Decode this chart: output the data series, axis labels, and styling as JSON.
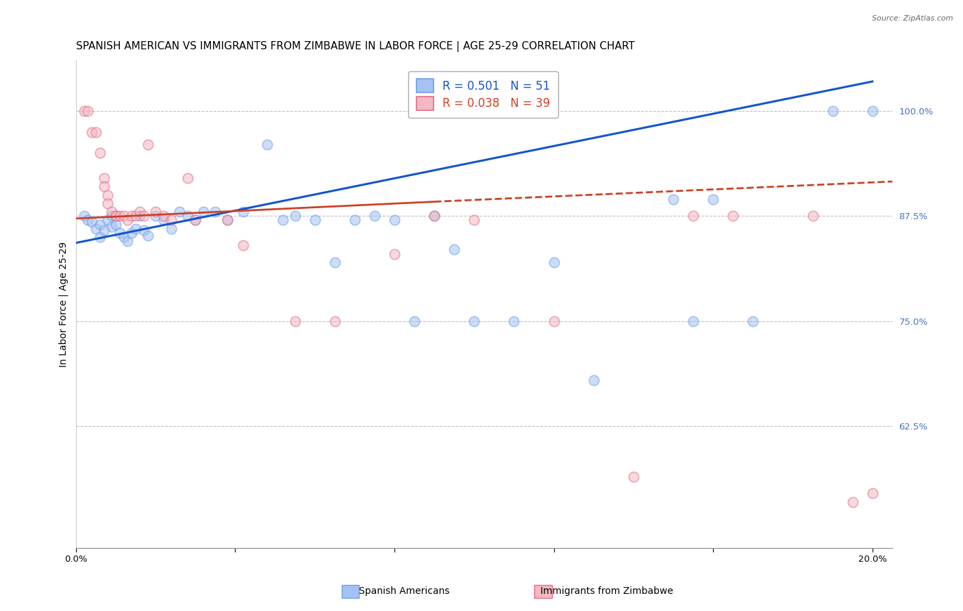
{
  "title": "SPANISH AMERICAN VS IMMIGRANTS FROM ZIMBABWE IN LABOR FORCE | AGE 25-29 CORRELATION CHART",
  "source": "Source: ZipAtlas.com",
  "ylabel": "In Labor Force | Age 25-29",
  "xlim": [
    0.0,
    0.205
  ],
  "ylim": [
    0.48,
    1.06
  ],
  "xticks": [
    0.0,
    0.04,
    0.08,
    0.12,
    0.16,
    0.2
  ],
  "xticklabels": [
    "0.0%",
    "",
    "",
    "",
    "",
    "20.0%"
  ],
  "yticks": [
    0.625,
    0.75,
    0.875,
    1.0
  ],
  "yticklabels": [
    "62.5%",
    "75.0%",
    "87.5%",
    "100.0%"
  ],
  "blue_color": "#a4c2f4",
  "pink_color": "#f4b8c1",
  "blue_edge_color": "#6d9eeb",
  "pink_edge_color": "#e06c8a",
  "blue_line_color": "#1155cc",
  "pink_line_color": "#cc4125",
  "legend_text_blue": "R = 0.501   N = 51",
  "legend_text_pink": "R = 0.038   N = 39",
  "legend_label_blue": "Spanish Americans",
  "legend_label_pink": "Immigrants from Zimbabwe",
  "blue_scatter_x": [
    0.002,
    0.003,
    0.004,
    0.005,
    0.006,
    0.006,
    0.007,
    0.008,
    0.009,
    0.009,
    0.01,
    0.01,
    0.011,
    0.012,
    0.013,
    0.014,
    0.015,
    0.016,
    0.017,
    0.018,
    0.02,
    0.022,
    0.024,
    0.026,
    0.028,
    0.03,
    0.032,
    0.035,
    0.038,
    0.042,
    0.048,
    0.052,
    0.055,
    0.06,
    0.065,
    0.07,
    0.075,
    0.08,
    0.085,
    0.09,
    0.095,
    0.1,
    0.11,
    0.12,
    0.13,
    0.15,
    0.155,
    0.16,
    0.17,
    0.19,
    0.2
  ],
  "blue_scatter_y": [
    0.875,
    0.87,
    0.868,
    0.86,
    0.865,
    0.85,
    0.858,
    0.87,
    0.862,
    0.875,
    0.875,
    0.865,
    0.855,
    0.85,
    0.845,
    0.855,
    0.86,
    0.875,
    0.858,
    0.852,
    0.875,
    0.87,
    0.86,
    0.88,
    0.875,
    0.87,
    0.88,
    0.88,
    0.87,
    0.88,
    0.96,
    0.87,
    0.875,
    0.87,
    0.82,
    0.87,
    0.875,
    0.87,
    0.75,
    0.875,
    0.835,
    0.75,
    0.75,
    0.82,
    0.68,
    0.895,
    0.75,
    0.895,
    0.75,
    1.0,
    1.0
  ],
  "pink_scatter_x": [
    0.002,
    0.003,
    0.004,
    0.005,
    0.006,
    0.007,
    0.007,
    0.008,
    0.008,
    0.009,
    0.01,
    0.01,
    0.011,
    0.012,
    0.013,
    0.014,
    0.015,
    0.016,
    0.017,
    0.018,
    0.02,
    0.022,
    0.024,
    0.028,
    0.03,
    0.038,
    0.042,
    0.055,
    0.065,
    0.08,
    0.09,
    0.1,
    0.12,
    0.14,
    0.155,
    0.165,
    0.185,
    0.195,
    0.2
  ],
  "pink_scatter_y": [
    1.0,
    1.0,
    0.975,
    0.975,
    0.95,
    0.92,
    0.91,
    0.9,
    0.89,
    0.88,
    0.875,
    0.875,
    0.875,
    0.875,
    0.87,
    0.875,
    0.875,
    0.88,
    0.875,
    0.96,
    0.88,
    0.875,
    0.87,
    0.92,
    0.87,
    0.87,
    0.84,
    0.75,
    0.75,
    0.83,
    0.875,
    0.87,
    0.75,
    0.565,
    0.875,
    0.875,
    0.875,
    0.535,
    0.545
  ],
  "blue_line_x0": 0.0,
  "blue_line_x1": 0.2,
  "blue_line_y0": 0.843,
  "blue_line_y1": 1.035,
  "pink_line_solid_x0": 0.0,
  "pink_line_solid_x1": 0.09,
  "pink_line_solid_y0": 0.872,
  "pink_line_solid_y1": 0.892,
  "pink_line_dash_x0": 0.09,
  "pink_line_dash_x1": 0.205,
  "pink_line_dash_y0": 0.892,
  "pink_line_dash_y1": 0.916,
  "grid_color": "#c0c0c0",
  "ytick_color": "#4472c4",
  "background_color": "#ffffff",
  "title_fontsize": 11,
  "axis_fontsize": 10,
  "tick_fontsize": 9.5,
  "scatter_size": 110,
  "scatter_alpha": 0.55,
  "scatter_linewidth": 1.2
}
